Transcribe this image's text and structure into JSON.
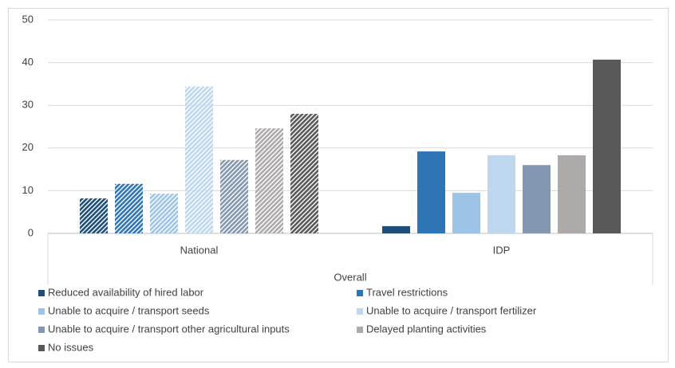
{
  "chart_data": {
    "type": "bar",
    "x_label": "Overall",
    "categories": [
      "National",
      "IDP"
    ],
    "hatch": [
      true,
      false
    ],
    "series": [
      {
        "name": "Reduced availability of hired labor",
        "color": "#1f4e79",
        "values": [
          8.2,
          1.7
        ]
      },
      {
        "name": "Travel restrictions",
        "color": "#2e75b6",
        "values": [
          11.6,
          19.2
        ]
      },
      {
        "name": "Unable to acquire / transport seeds",
        "color": "#9dc3e6",
        "values": [
          9.3,
          9.5
        ]
      },
      {
        "name": "Unable to acquire / transport fertilizer",
        "color": "#bdd7ee",
        "values": [
          34.4,
          18.3
        ]
      },
      {
        "name": "Unable to acquire / transport other agricultural inputs",
        "color": "#8497b0",
        "values": [
          17.2,
          16.0
        ]
      },
      {
        "name": "Delayed planting activities",
        "color": "#aeaaaa",
        "values": [
          24.6,
          18.3
        ]
      },
      {
        "name": "No issues",
        "color": "#595959",
        "values": [
          28.0,
          40.7
        ]
      }
    ],
    "ylim": [
      0,
      50
    ],
    "yticks": [
      0,
      10,
      20,
      30,
      40,
      50
    ],
    "grid": true,
    "legend": "bottom"
  }
}
